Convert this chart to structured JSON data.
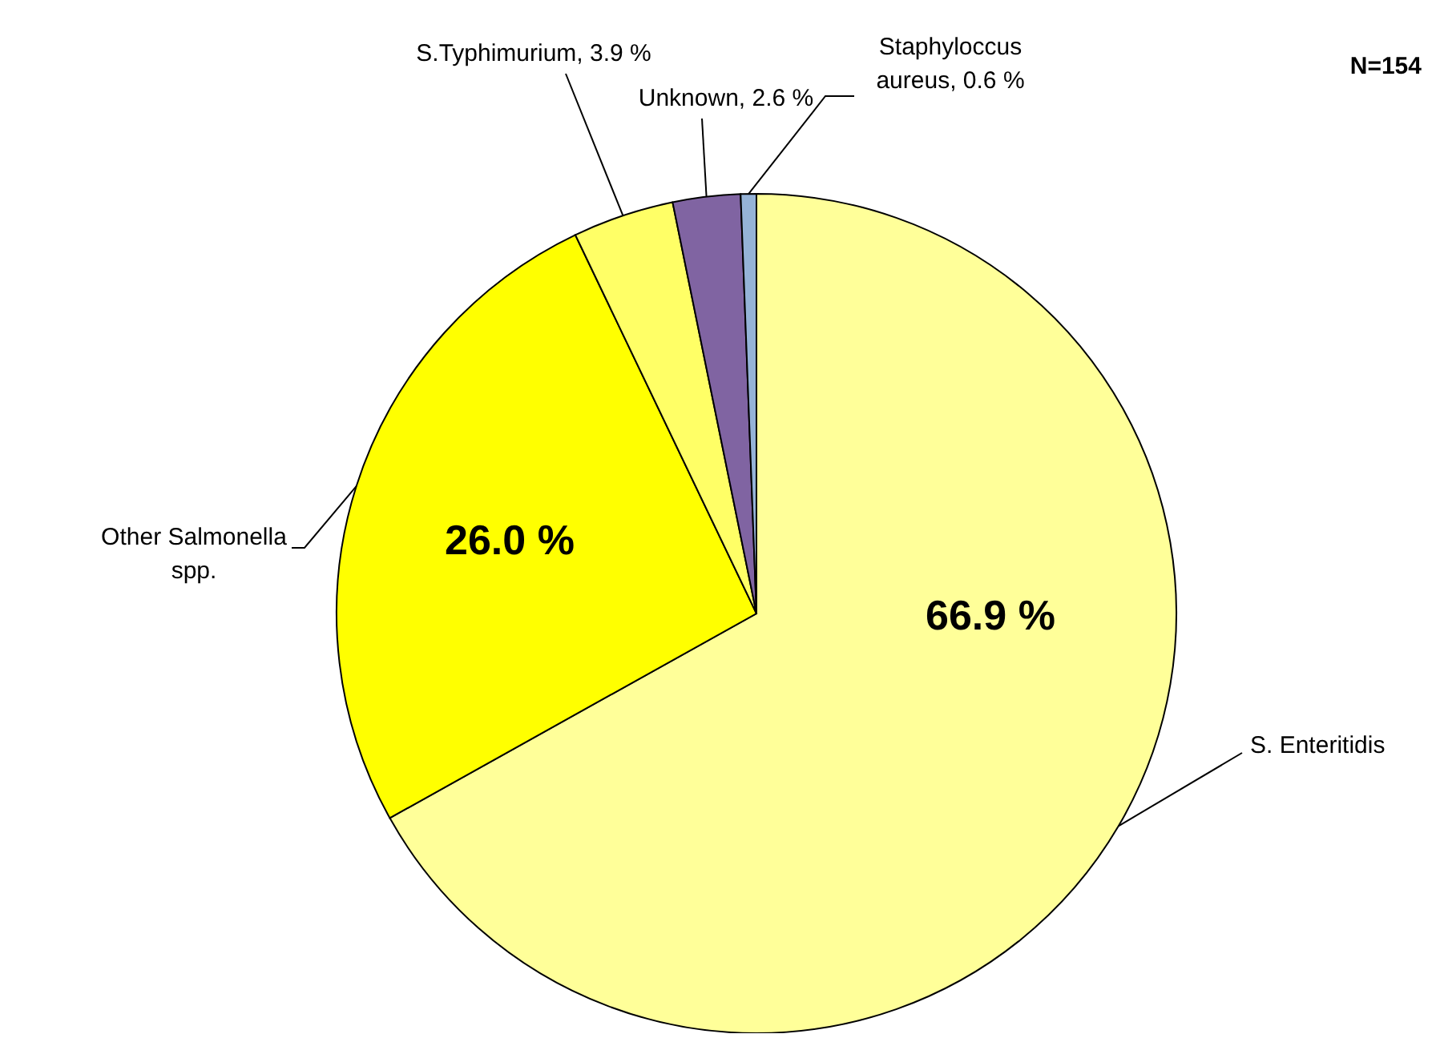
{
  "chart_data": {
    "type": "pie",
    "categories": [
      "S. Enteritidis",
      "Other Salmonella spp.",
      "S.Typhimurium",
      "Unknown",
      "Staphyloccus aureus"
    ],
    "values": [
      66.9,
      26.0,
      3.9,
      2.6,
      0.6
    ],
    "colors": [
      "#ffff99",
      "#ffff00",
      "#ffff66",
      "#8064a2",
      "#95b3d7"
    ],
    "value_labels": [
      "66.9 %",
      "26.0 %",
      "3.9 %",
      "2.6 %",
      "0.6 %"
    ],
    "annotations": [
      "N=154"
    ],
    "legend": false
  }
}
